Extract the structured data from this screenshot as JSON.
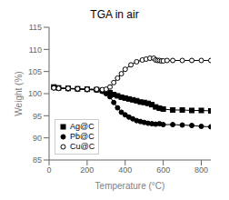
{
  "chart_data": {
    "type": "line",
    "title": "TGA in air",
    "xlabel": "Temperature (°C)",
    "ylabel": "Weight (%)",
    "xlim": [
      0,
      850
    ],
    "ylim": [
      85,
      115
    ],
    "xticks": [
      0,
      200,
      400,
      600,
      800
    ],
    "yticks": [
      85,
      90,
      95,
      100,
      105,
      110,
      115
    ],
    "grid": false,
    "legend": "lower left",
    "series": [
      {
        "name": "Ag@C",
        "color": "black",
        "marker": "square",
        "x": [
          25,
          50,
          100,
          150,
          200,
          250,
          280,
          300,
          320,
          340,
          360,
          380,
          400,
          420,
          440,
          460,
          480,
          500,
          520,
          540,
          560,
          580,
          600,
          650,
          700,
          750,
          800,
          850
        ],
        "values": [
          101.5,
          101.3,
          101.2,
          101.1,
          101.0,
          100.9,
          100.7,
          100.5,
          100.2,
          99.8,
          99.5,
          99.2,
          99.0,
          98.8,
          98.6,
          98.4,
          98.1,
          98.0,
          97.8,
          97.5,
          97.0,
          96.7,
          96.5,
          96.3,
          96.3,
          96.2,
          96.2,
          96.1
        ]
      },
      {
        "name": "Pb@C",
        "color": "black",
        "marker": "circle",
        "x": [
          25,
          50,
          100,
          150,
          200,
          250,
          280,
          300,
          320,
          340,
          360,
          380,
          400,
          420,
          440,
          460,
          480,
          500,
          520,
          540,
          560,
          580,
          600,
          650,
          700,
          750,
          800,
          850
        ],
        "values": [
          101.3,
          101.2,
          101.1,
          101.0,
          100.9,
          100.8,
          100.5,
          100.0,
          99.3,
          98.0,
          96.8,
          95.8,
          95.2,
          94.7,
          94.3,
          93.9,
          93.7,
          93.5,
          93.3,
          93.2,
          93.1,
          93.2,
          93.0,
          93.0,
          92.9,
          92.8,
          92.6,
          92.5
        ]
      },
      {
        "name": "Cu@C",
        "color": "black",
        "marker": "open_circle",
        "x": [
          25,
          50,
          100,
          150,
          200,
          250,
          280,
          300,
          320,
          340,
          360,
          380,
          400,
          430,
          460,
          490,
          510,
          530,
          550,
          560,
          570,
          580,
          590,
          600,
          620,
          650,
          700,
          750,
          800,
          850
        ],
        "values": [
          101.3,
          101.2,
          101.2,
          101.1,
          101.0,
          101.0,
          100.9,
          101.0,
          101.5,
          102.5,
          103.5,
          104.5,
          105.5,
          106.5,
          107.2,
          107.6,
          107.8,
          108.0,
          108.0,
          107.6,
          107.5,
          107.5,
          107.4,
          107.4,
          107.5,
          107.5,
          107.5,
          107.5,
          107.5,
          107.5
        ]
      }
    ]
  }
}
